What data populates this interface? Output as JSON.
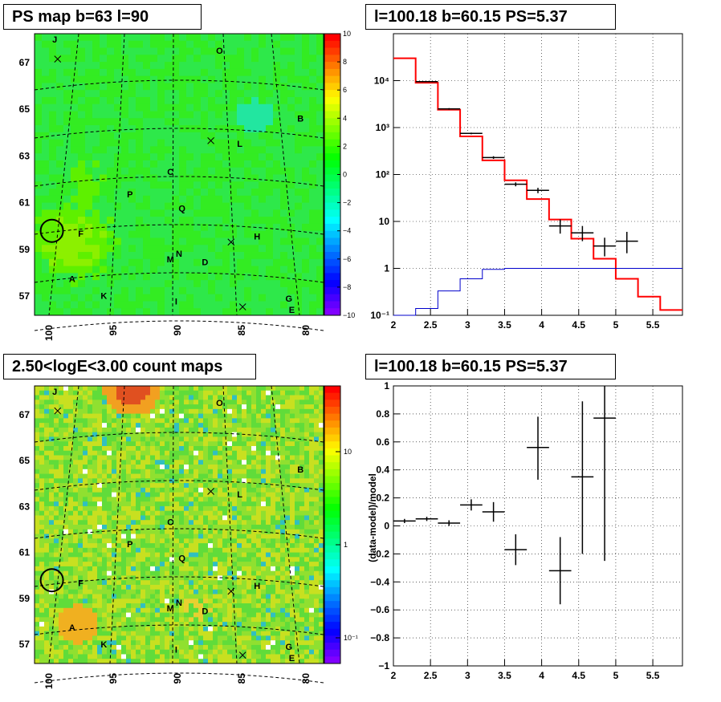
{
  "panels": {
    "top_left_title": "PS map b=63 l=90",
    "top_right_title": "l=100.18 b=60.15 PS=5.37",
    "bottom_left_title": "2.50<logE<3.00 count maps",
    "bottom_right_title": "l=100.18 b=60.15 PS=5.37"
  },
  "chart_data": [
    {
      "type": "heatmap",
      "panel": "top-left",
      "title": "PS map b=63 l=90",
      "x_ticks": [
        "100",
        "95",
        "90",
        "85",
        "80"
      ],
      "y_ticks": [
        "67",
        "65",
        "63",
        "61",
        "59",
        "57"
      ],
      "colorbar_ticks": [
        "10",
        "8",
        "6",
        "4",
        "2",
        "0",
        "−2",
        "−4",
        "−6",
        "−8",
        "−10"
      ],
      "colorbar_range": [
        -10,
        10
      ],
      "dominant_value": "~0 (green)",
      "sources": [
        "J",
        "O",
        "B",
        "L",
        "C",
        "P",
        "Q",
        "F",
        "H",
        "N",
        "M",
        "D",
        "A",
        "K",
        "I",
        "G",
        "E"
      ]
    },
    {
      "type": "line",
      "panel": "top-right",
      "title": "l=100.18 b=60.15 PS=5.37",
      "x_ticks": [
        "2",
        "2.5",
        "3",
        "3.5",
        "4",
        "4.5",
        "5",
        "5.5"
      ],
      "xlim": [
        2.0,
        5.9
      ],
      "y_scale": "log",
      "ylim": [
        0.1,
        100000
      ],
      "y_ticks": [
        "10⁻¹",
        "1",
        "10",
        "10²",
        "10³",
        "10⁴"
      ],
      "grid": true,
      "series": [
        {
          "color": "#ff0000",
          "style": "step",
          "edges": [
            2.0,
            2.3,
            2.6,
            2.9,
            3.2,
            3.5,
            3.8,
            4.1,
            4.4,
            4.7,
            5.0,
            5.3,
            5.6,
            5.9
          ],
          "values": [
            30000,
            9000,
            2400,
            650,
            200,
            75,
            30,
            11,
            4.3,
            1.6,
            0.6,
            0.25,
            0.13
          ]
        },
        {
          "color": "#0000cc",
          "style": "step",
          "edges": [
            2.0,
            2.3,
            2.6,
            2.9,
            3.2,
            3.5,
            3.8,
            4.1,
            4.4,
            4.7,
            5.0,
            5.3,
            5.6,
            5.9
          ],
          "values": [
            0.1,
            0.14,
            0.33,
            0.6,
            0.95,
            1,
            1,
            1,
            1,
            1,
            1,
            1,
            1
          ]
        },
        {
          "color": "#000000",
          "style": "errorbar",
          "x": [
            2.45,
            2.75,
            3.05,
            3.35,
            3.65,
            3.95,
            4.25,
            4.55,
            4.85,
            5.15
          ],
          "xerr": 0.15,
          "y": [
            9500,
            2500,
            750,
            230,
            62,
            46,
            8,
            5.7,
            3,
            3.8
          ],
          "ylo": [
            9300,
            2400,
            720,
            215,
            56,
            40,
            5.5,
            3.8,
            1.8,
            2.1
          ],
          "yhi": [
            9700,
            2600,
            780,
            245,
            68,
            52,
            11,
            8,
            4.5,
            6
          ]
        }
      ]
    },
    {
      "type": "heatmap",
      "panel": "bottom-left",
      "title": "2.50<logE<3.00 count maps",
      "x_ticks": [
        "100",
        "95",
        "90",
        "85",
        "80"
      ],
      "y_ticks": [
        "67",
        "65",
        "63",
        "61",
        "59",
        "57"
      ],
      "colorbar_scale": "log",
      "colorbar_ticks": [
        "10",
        "1",
        "10⁻¹"
      ],
      "sources": [
        "J",
        "O",
        "B",
        "L",
        "C",
        "P",
        "Q",
        "F",
        "H",
        "N",
        "M",
        "D",
        "A",
        "K",
        "I",
        "G",
        "E"
      ]
    },
    {
      "type": "scatter",
      "panel": "bottom-right",
      "title": "l=100.18 b=60.15 PS=5.37",
      "ylabel": "(data-model)/model",
      "x_ticks": [
        "2",
        "2.5",
        "3",
        "3.5",
        "4",
        "4.5",
        "5",
        "5.5"
      ],
      "xlim": [
        2.0,
        5.9
      ],
      "ylim": [
        -1.0,
        1.0
      ],
      "y_ticks": [
        "1",
        "0.8",
        "0.6",
        "0.4",
        "0.2",
        "0",
        "−0.2",
        "−0.4",
        "−0.6",
        "−0.8",
        "−1"
      ],
      "grid": true,
      "series": [
        {
          "color": "#000000",
          "style": "errorbar",
          "x": [
            2.15,
            2.45,
            2.75,
            3.05,
            3.35,
            3.65,
            3.95,
            4.25,
            4.55,
            4.85
          ],
          "xerr": 0.15,
          "y": [
            0.035,
            0.05,
            0.02,
            0.15,
            0.1,
            -0.17,
            0.56,
            -0.32,
            0.35,
            0.77
          ],
          "ylo": [
            0.02,
            0.035,
            0.0,
            0.11,
            0.03,
            -0.28,
            0.33,
            -0.56,
            -0.2,
            -0.25
          ],
          "yhi": [
            0.05,
            0.065,
            0.04,
            0.19,
            0.17,
            -0.06,
            0.78,
            -0.08,
            0.89,
            1.0
          ]
        }
      ]
    }
  ]
}
